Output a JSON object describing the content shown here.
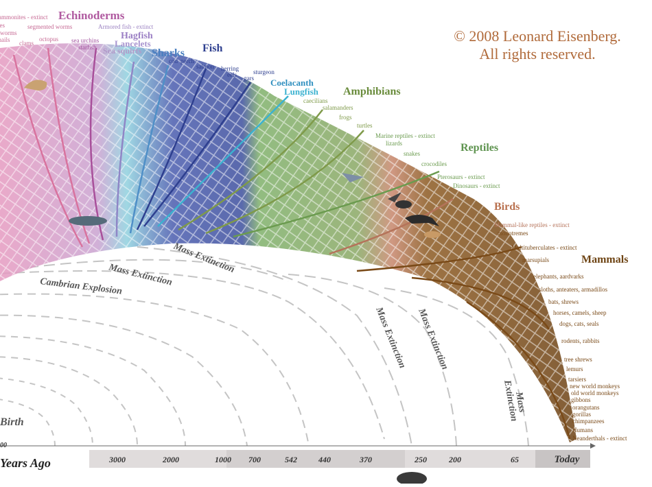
{
  "copyright": {
    "line1": "© 2008 Leonard Eisenberg.",
    "line2": "All rights reserved."
  },
  "groups": {
    "echinoderms": "Echinoderms",
    "hagfish": "Hagfish",
    "lancelets": "Lancelets",
    "sea_squirts": "Sea squirts",
    "sharks": "Sharks",
    "fish": "Fish",
    "coelacanth": "Coelacanth",
    "lungfish": "Lungfish",
    "amphibians": "Amphibians",
    "reptiles": "Reptiles",
    "birds": "Birds",
    "mammals": "Mammals"
  },
  "species": {
    "ammonites": "ammonites - extinct",
    "sponges": "sponges",
    "segmented_worms": "segmented worms",
    "armored_fish": "Armored fish - extinct",
    "flatworms": "flatworms",
    "octopus": "octopus",
    "snails": "snails",
    "clams": "clams",
    "sea_urchins": "sea urchins",
    "starfish": "starfish",
    "cod": "cod",
    "perch": "perch",
    "salmon": "salmon",
    "herring": "herring",
    "eels": "eels",
    "gars": "gars",
    "sturgeon": "sturgeon",
    "caecilians": "caecilians",
    "salamanders": "salamanders",
    "frogs": "frogs",
    "turtles": "turtles",
    "marine_reptiles": "Marine reptiles - extinct",
    "lizards": "lizards",
    "snakes": "snakes",
    "crocodiles": "crocodiles",
    "pterosaurs": "Pterosaurs - extinct",
    "dinosaurs": "Dinosaurs - extinct",
    "mammal_like_reptiles": "Mammal-like reptiles - extinct",
    "monotremes": "monotremes",
    "multituberculates": "Multituberculates - extinct",
    "marsupials": "marsupials",
    "elephants": "elephants, aardvarks",
    "sloths": "sloths, anteaters, armadillos",
    "bats": "bats, shrews",
    "horses": "horses, camels, sheep",
    "dogs": "dogs, cats, seals",
    "rodents": "rodents, rabbits",
    "tree_shrews": "tree shrews",
    "lemurs": "lemurs",
    "tarsiers": "tarsiers",
    "nw_monkeys": "new world monkeys",
    "ow_monkeys": "old world monkeys",
    "gibbons": "gibbons",
    "orangutans": "orangutans",
    "gorillas": "gorillas",
    "chimpanzees": "chimpanzees",
    "humans": "Humans",
    "neanderthals": "Neanderthals - extinct"
  },
  "events": {
    "mass_extinction": "Mass Extinction",
    "mass": "Mass",
    "extinction": "Extinction",
    "cambrian": "Cambrian Explosion",
    "birth": "Birth"
  },
  "timeline": {
    "axis_label": "Years Ago",
    "axis_stub": "00",
    "ticks": [
      "3000",
      "2000",
      "1000",
      "700",
      "542",
      "440",
      "370",
      "250",
      "200",
      "65",
      "Today"
    ]
  },
  "colors": {
    "invertebrates": "#d8739e",
    "echinoderms": "#a84f9a",
    "chordates": "#8f86c6",
    "sharks": "#4f8fc7",
    "fish": "#2e3f8f",
    "lobefin": "#3bb2d0",
    "amphibians": "#7f9a4a",
    "reptiles": "#6b9b4f",
    "birds": "#b5735a",
    "mammals": "#7a4a18",
    "extinction_lines": "#bdbdbd",
    "copyright": "#b06a3a"
  }
}
